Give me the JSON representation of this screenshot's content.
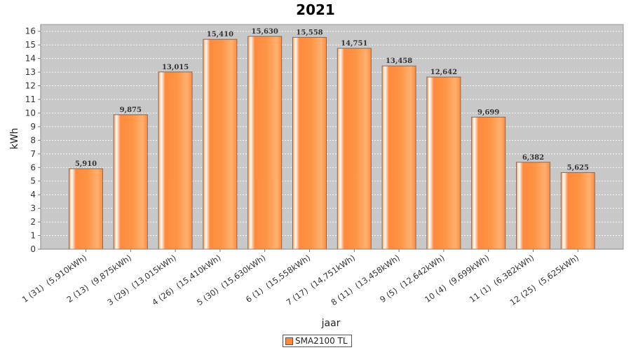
{
  "chart_data": {
    "type": "bar",
    "title": "2021",
    "xlabel": "jaar",
    "ylabel": "kWh",
    "ylim": [
      0,
      16.5
    ],
    "yticks": [
      0,
      1,
      2,
      3,
      4,
      5,
      6,
      7,
      8,
      9,
      10,
      11,
      12,
      13,
      14,
      15,
      16
    ],
    "grid": true,
    "legend_position": "bottom-center",
    "categories": [
      "1 (31)  (5,910kWh)",
      "2 (13)  (9,875kWh)",
      "3 (29)  (13,015kWh)",
      "4 (26)  (15,410kWh)",
      "5 (30)  (15,630kWh)",
      "6 (1)  (15,558kWh)",
      "7 (17)  (14,751kWh)",
      "8 (11)  (13,458kWh)",
      "9 (5)  (12,642kWh)",
      "10 (4)  (9,699kWh)",
      "11 (1)  (6,382kWh)",
      "12 (25)  (5,625kWh)"
    ],
    "series": [
      {
        "name": "SMA2100 TL",
        "values": [
          5.91,
          9.875,
          13.015,
          15.41,
          15.63,
          15.558,
          14.751,
          13.458,
          12.642,
          9.699,
          6.382,
          5.625
        ],
        "value_labels": [
          "5,910",
          "9,875",
          "13,015",
          "15,410",
          "15,630",
          "15,558",
          "14,751",
          "13,458",
          "12,642",
          "9,699",
          "6,382",
          "5,625"
        ]
      }
    ]
  },
  "colors": {
    "plot_background": "#c8c8c8",
    "bar_orange": "#ff8a3d",
    "bar_highlight": "#fff1e6",
    "bar_border": "#8a6a55",
    "gridline": "#ffffff"
  }
}
